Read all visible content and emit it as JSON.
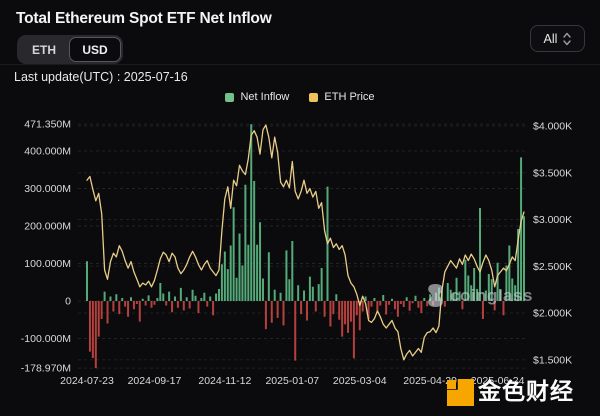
{
  "header": {
    "title": "Total Ethereum Spot ETF Net Inflow",
    "currency_toggle": {
      "options": [
        "ETH",
        "USD"
      ],
      "selected": "USD"
    },
    "range_select": {
      "value": "All"
    },
    "last_update": "Last update(UTC) : 2025-07-16"
  },
  "legend": [
    {
      "label": "Net Inflow",
      "color": "#73c08d"
    },
    {
      "label": "ETH Price",
      "color": "#eec35c"
    }
  ],
  "watermarks": {
    "chart_text": "coinglass",
    "footer_text": "金色财经"
  },
  "chart_data": {
    "type": "bar+line",
    "title": "Total Ethereum Spot ETF Net Inflow",
    "x_start": "2024-07-23",
    "x_end": "2025-07-16",
    "x_ticks": {
      "labels": [
        "2024-07-23",
        "2024-09-17",
        "2024-11-12",
        "2025-01-07",
        "2025-03-04",
        "2025-04-29",
        "2025-06-24"
      ],
      "indices": [
        0,
        23,
        47,
        70,
        93,
        117,
        140
      ]
    },
    "y_left": {
      "name": "Net Inflow (USD)",
      "tick_labels": [
        "471.350M",
        "400.000M",
        "300.000M",
        "200.000M",
        "100.000M",
        "0",
        "-100.000M",
        "-178.970M"
      ],
      "tick_values": [
        471.35,
        400,
        300,
        200,
        100,
        0,
        -100,
        -178.97
      ],
      "range": [
        -178.97,
        471.35
      ]
    },
    "y_right": {
      "name": "ETH Price (USD)",
      "tick_labels": [
        "$4.000K",
        "$3.500K",
        "$3.000K",
        "$2.500K",
        "$2.000K",
        "$1.500K"
      ],
      "tick_values": [
        4000,
        3500,
        3000,
        2500,
        2000,
        1500
      ],
      "range": [
        1500,
        4000
      ]
    },
    "grid": "dashed",
    "legend_position": "top-center",
    "series": [
      {
        "name": "Net Inflow",
        "type": "bar",
        "unit": "million USD",
        "color_positive": "#54aa78",
        "color_negative": "#b4413d",
        "values": [
          106,
          -135,
          -152,
          -178.97,
          -95,
          -48,
          25,
          -60,
          12,
          -28,
          18,
          -35,
          8,
          -15,
          -42,
          10,
          -22,
          -8,
          -55,
          6,
          -12,
          15,
          -18,
          -10,
          8,
          48,
          20,
          -12,
          25,
          -30,
          12,
          -18,
          35,
          -25,
          10,
          -20,
          30,
          14,
          -32,
          8,
          22,
          -15,
          12,
          -38,
          20,
          32,
          98,
          132,
          85,
          148,
          250,
          62,
          180,
          95,
          310,
          150,
          471.35,
          320,
          150,
          210,
          60,
          -75,
          130,
          -58,
          30,
          -45,
          22,
          -65,
          135,
          58,
          160,
          -159,
          42,
          -35,
          28,
          -52,
          65,
          38,
          -28,
          45,
          88,
          -42,
          305,
          -68,
          -35,
          18,
          -50,
          -95,
          -62,
          -85,
          -55,
          -153,
          -38,
          -78,
          -28,
          12,
          -48,
          -15,
          8,
          -32,
          -12,
          16,
          -36,
          -10,
          6,
          -22,
          -42,
          -8,
          -16,
          10,
          -26,
          -6,
          14,
          -18,
          -32,
          8,
          -14,
          18,
          -12,
          22,
          36,
          28,
          -15,
          48,
          30,
          20,
          62,
          25,
          -22,
          110,
          68,
          42,
          88,
          32,
          248,
          -48,
          28,
          72,
          58,
          -25,
          102,
          30,
          -38,
          95,
          148,
          60,
          42,
          192,
          383,
          226
        ]
      },
      {
        "name": "ETH Price",
        "type": "line",
        "unit": "USD",
        "color": "#e8cd88",
        "values": [
          3420,
          3460,
          3320,
          3200,
          3280,
          3060,
          2460,
          2360,
          2550,
          2640,
          2600,
          2720,
          2660,
          2560,
          2480,
          2550,
          2440,
          2360,
          2280,
          2320,
          2300,
          2340,
          2280,
          2350,
          2460,
          2580,
          2650,
          2620,
          2550,
          2640,
          2600,
          2480,
          2420,
          2460,
          2520,
          2600,
          2660,
          2600,
          2520,
          2460,
          2520,
          2560,
          2480,
          2440,
          2400,
          2460,
          2880,
          3220,
          3350,
          3120,
          3420,
          3360,
          3580,
          3520,
          3480,
          3650,
          3900,
          3950,
          3880,
          3700,
          3960,
          4010,
          3880,
          3660,
          3880,
          3720,
          3400,
          3350,
          3420,
          3340,
          3620,
          3300,
          3220,
          3300,
          3420,
          3280,
          3330,
          3240,
          3300,
          3120,
          3180,
          2880,
          2740,
          2800,
          2700,
          2740,
          2680,
          2720,
          2620,
          2400,
          2320,
          2280,
          2200,
          2080,
          2180,
          2100,
          1920,
          1900,
          1940,
          2020,
          1960,
          1880,
          1840,
          1880,
          1920,
          1840,
          1800,
          1620,
          1500,
          1560,
          1600,
          1540,
          1580,
          1620,
          1580,
          1740,
          1790,
          1800,
          1840,
          1790,
          1860,
          2240,
          2440,
          2500,
          2560,
          2520,
          2480,
          2580,
          2520,
          2620,
          2560,
          2630,
          2580,
          2500,
          2440,
          2540,
          2620,
          2560,
          2460,
          2280,
          2400,
          2440,
          2480,
          2450,
          2520,
          2600,
          2560,
          2780,
          2980,
          3080
        ]
      }
    ]
  }
}
